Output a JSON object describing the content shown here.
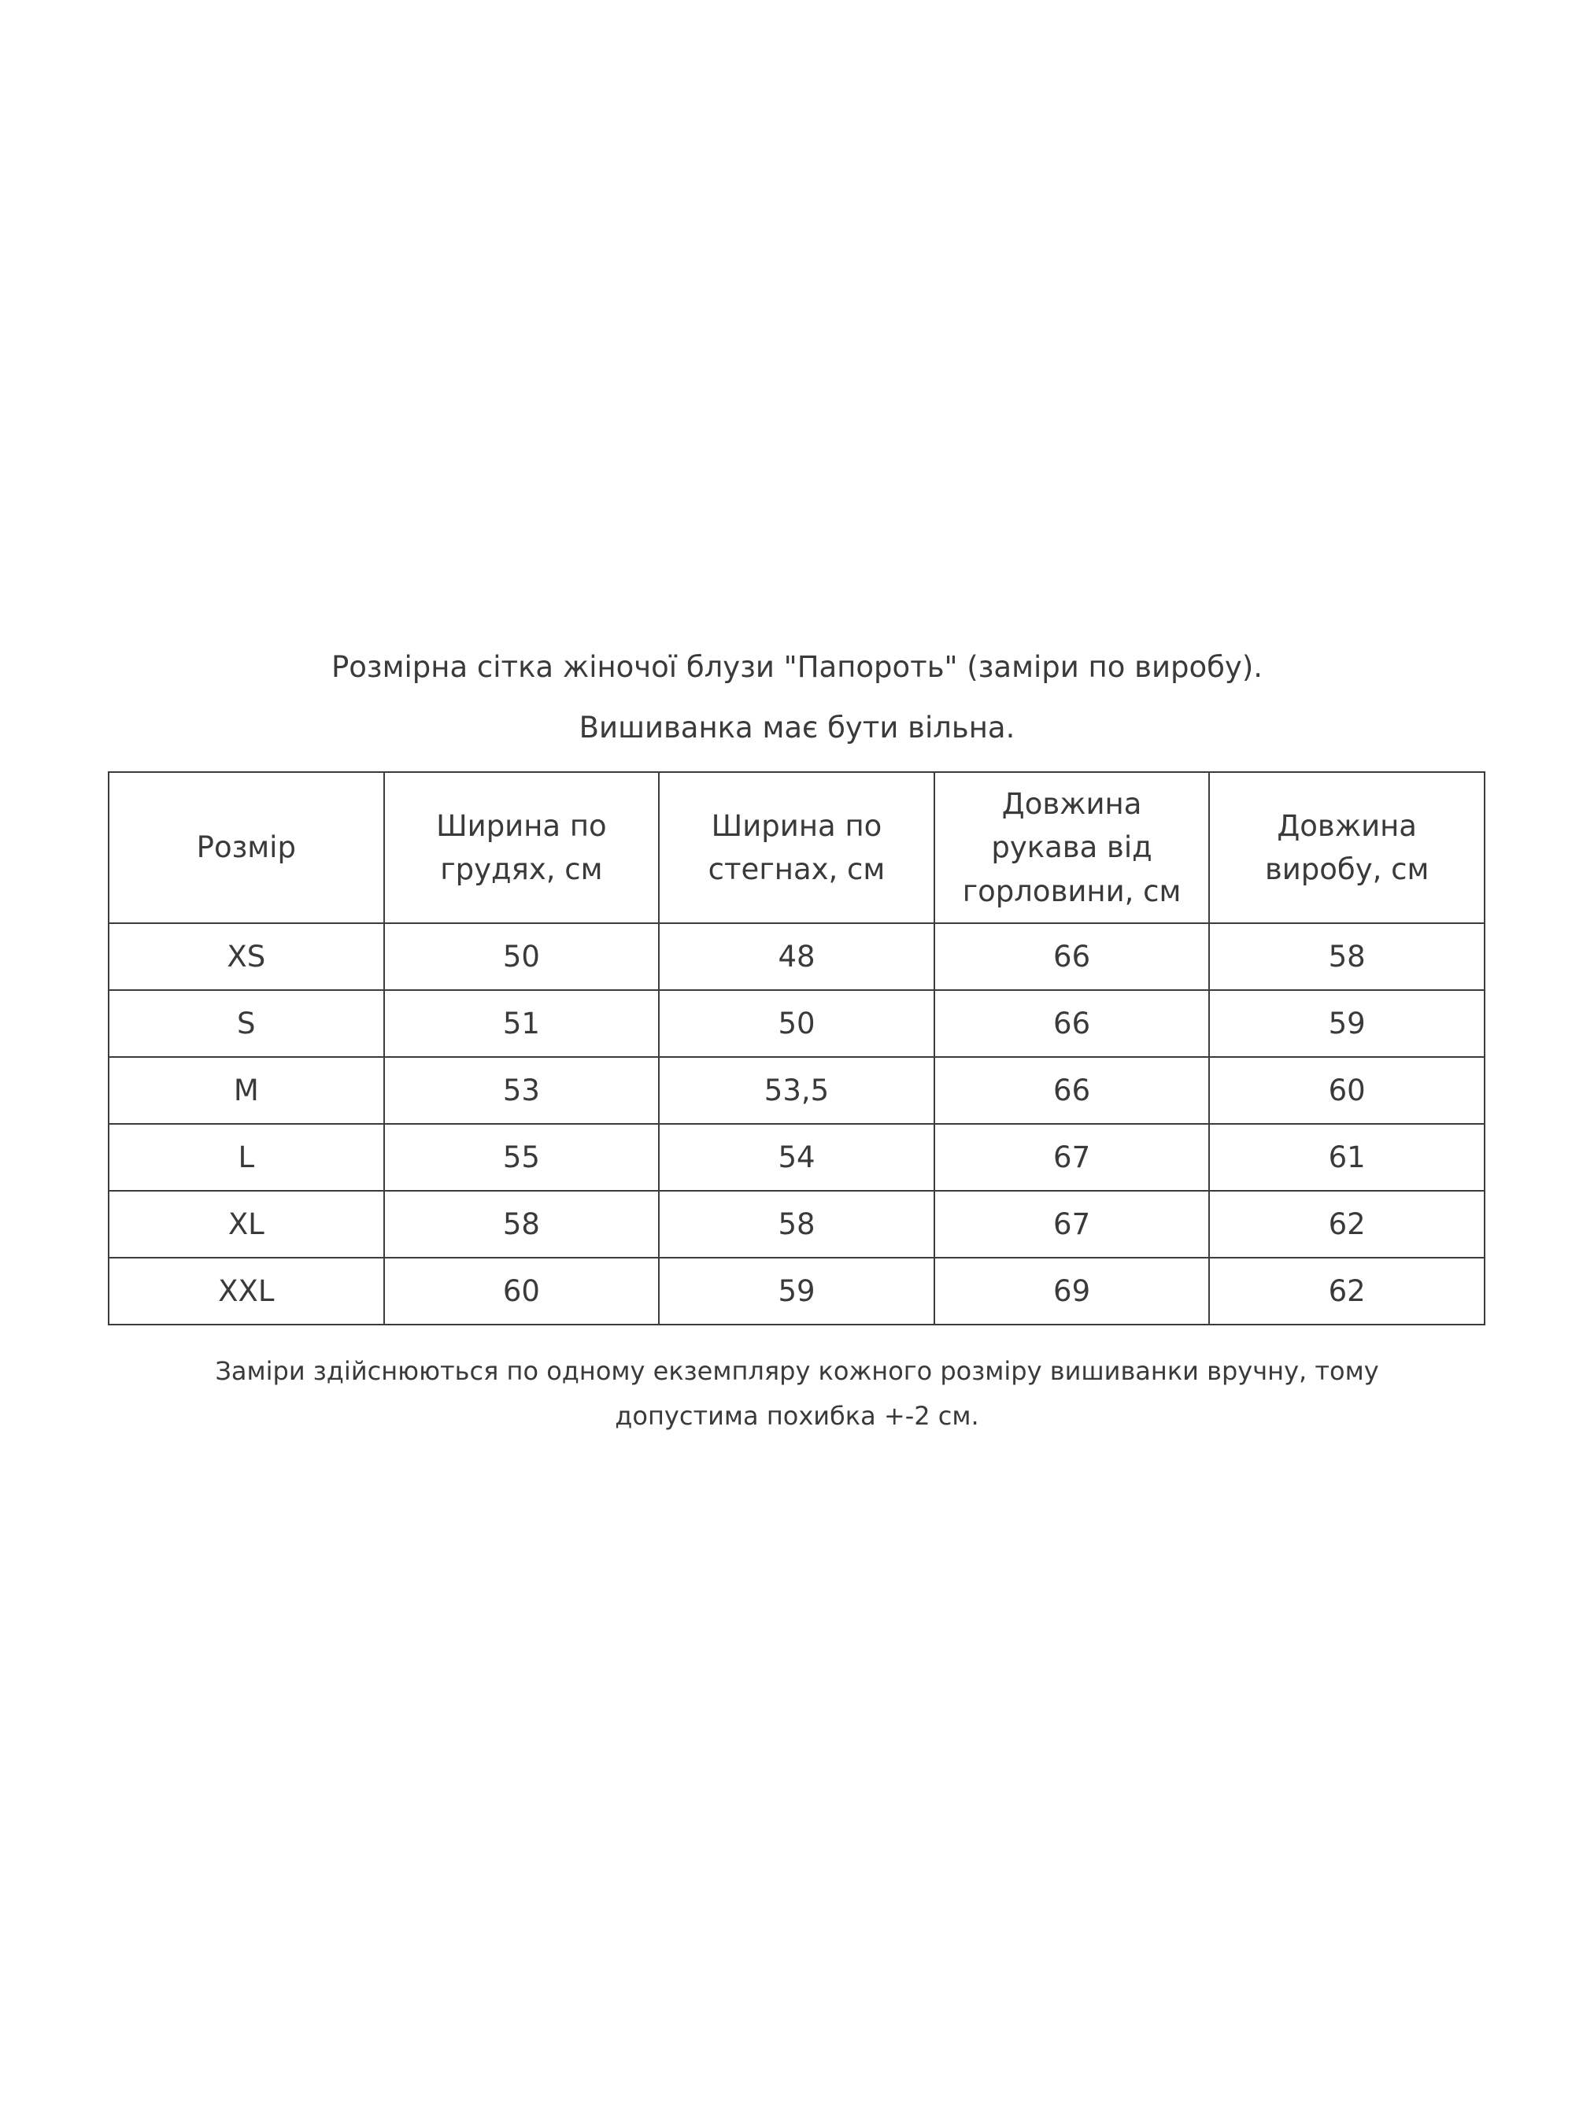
{
  "title": "Розмірна сітка жіночої блузи \"Папороть\" (заміри по виробу).",
  "subtitle": "Вишиванка має бути вільна.",
  "table": {
    "headers": [
      "Розмір",
      "Ширина по грудях, см",
      "Ширина по стегнах, см",
      "Довжина рукава від горловини, см",
      "Довжина виробу, см"
    ],
    "rows": [
      [
        "XS",
        "50",
        "48",
        "66",
        "58"
      ],
      [
        "S",
        "51",
        "50",
        "66",
        "59"
      ],
      [
        "M",
        "53",
        "53,5",
        "66",
        "60"
      ],
      [
        "L",
        "55",
        "54",
        "67",
        "61"
      ],
      [
        "XL",
        "58",
        "58",
        "67",
        "62"
      ],
      [
        "XXL",
        "60",
        "59",
        "69",
        "62"
      ]
    ]
  },
  "note": "Заміри здійснюються  по одному екземпляру кожного розміру вишиванки вручну, тому допустима похибка +-2 см."
}
